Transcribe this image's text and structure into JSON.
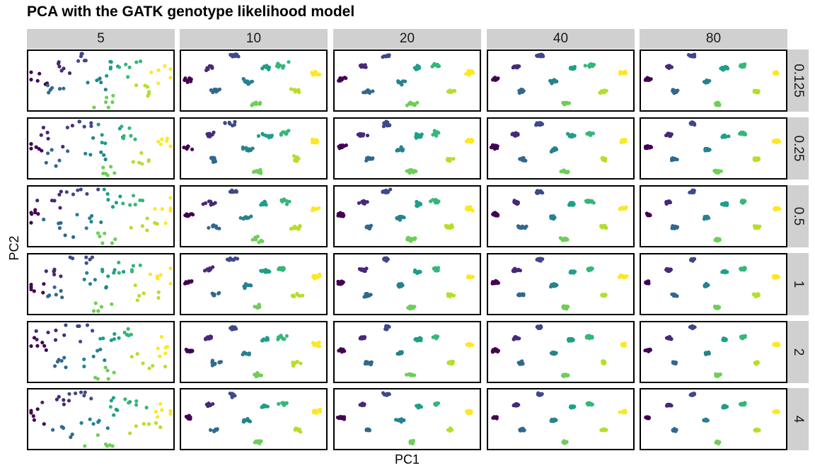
{
  "chart_data": {
    "type": "scatter",
    "title": "PCA with the GATK genotype likelihood model",
    "xlabel": "PC1",
    "ylabel": "PC2",
    "facet_columns": [
      "5",
      "10",
      "20",
      "40",
      "80"
    ],
    "facet_rows": [
      "0.125",
      "0.25",
      "0.5",
      "1",
      "2",
      "4"
    ],
    "grid": false,
    "legend": "none",
    "note": "10 populations (colored viridis) separated in PC space; spread shrinks with more data",
    "populations": [
      {
        "cx": 0.03,
        "cy": 0.47,
        "color": "#440154"
      },
      {
        "cx": 0.18,
        "cy": 0.24,
        "color": "#482878"
      },
      {
        "cx": 0.35,
        "cy": 0.04,
        "color": "#3e4989"
      },
      {
        "cx": 0.22,
        "cy": 0.7,
        "color": "#31688e"
      },
      {
        "cx": 0.45,
        "cy": 0.52,
        "color": "#26828e"
      },
      {
        "cx": 0.58,
        "cy": 0.27,
        "color": "#1f9e89"
      },
      {
        "cx": 0.71,
        "cy": 0.22,
        "color": "#35b779"
      },
      {
        "cx": 0.53,
        "cy": 0.93,
        "color": "#6ece58"
      },
      {
        "cx": 0.81,
        "cy": 0.7,
        "color": "#b5de2b"
      },
      {
        "cx": 0.95,
        "cy": 0.36,
        "color": "#fde725"
      }
    ]
  }
}
